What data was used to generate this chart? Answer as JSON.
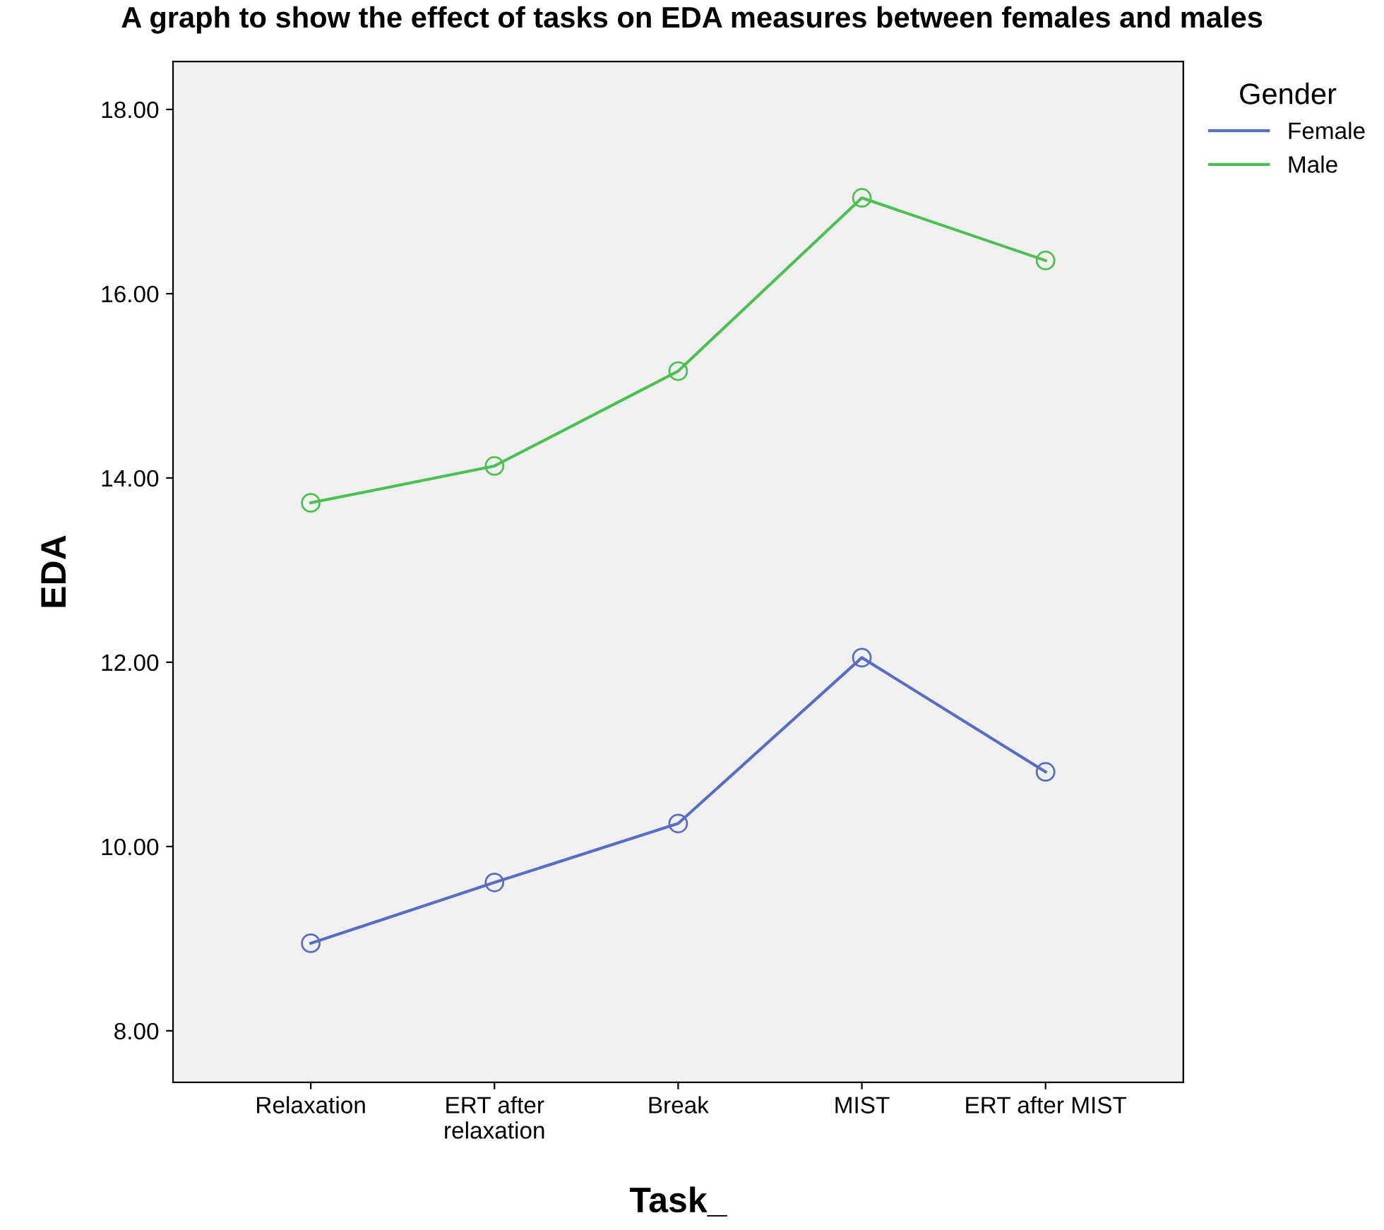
{
  "chart_data": {
    "type": "line",
    "title": "A graph to show the effect of tasks on EDA measures between females and males",
    "xlabel": "Task_",
    "ylabel": "EDA",
    "legend_title": "Gender",
    "legend": "top right",
    "marker": "circle",
    "grid": false,
    "categories": [
      "Relaxation",
      "ERT after\nrelaxation",
      "Break",
      "MIST",
      "ERT after MIST"
    ],
    "series": [
      {
        "name": "Female",
        "color": "#5a6dc0",
        "values": [
          8.95,
          9.61,
          10.25,
          12.05,
          10.81
        ]
      },
      {
        "name": "Male",
        "color": "#4cc052",
        "values": [
          13.73,
          14.13,
          15.16,
          17.04,
          16.36
        ]
      }
    ],
    "ylim": [
      7.44,
      18.52
    ],
    "yticks": [
      {
        "value": 8,
        "label": "8.00"
      },
      {
        "value": 10,
        "label": "10.00"
      },
      {
        "value": 12,
        "label": "12.00"
      },
      {
        "value": 14,
        "label": "14.00"
      },
      {
        "value": 16,
        "label": "16.00"
      },
      {
        "value": 18,
        "label": "18.00"
      }
    ]
  }
}
